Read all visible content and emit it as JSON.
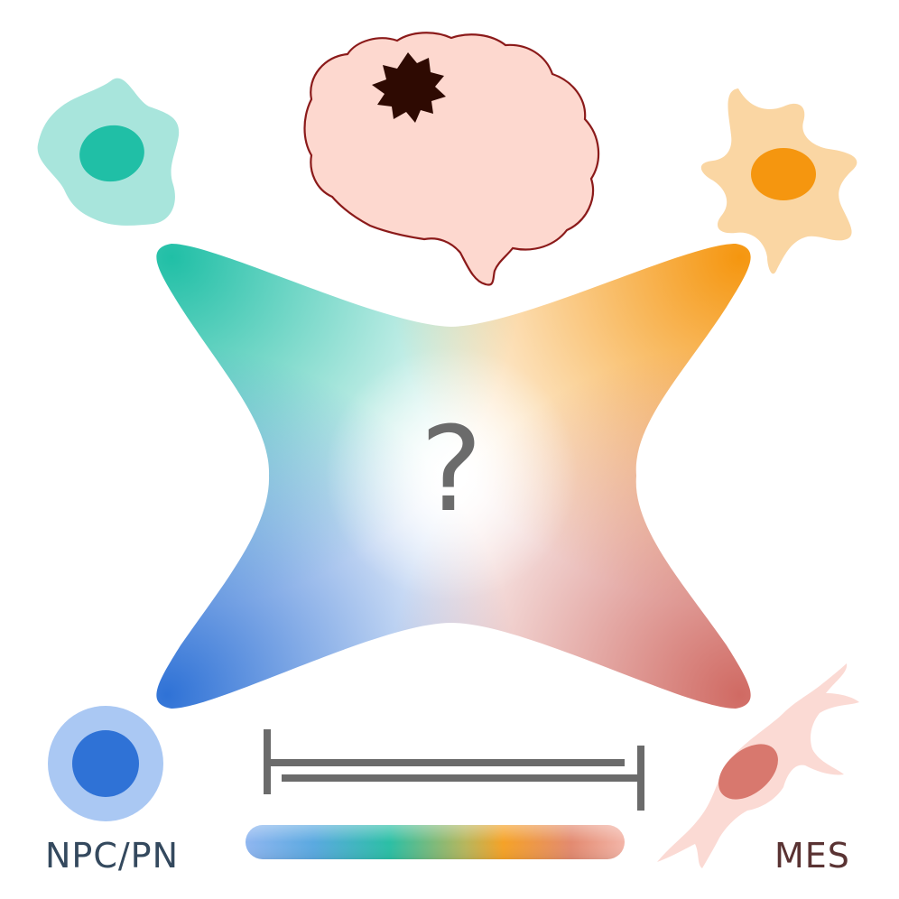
{
  "question_mark": "?",
  "labels": {
    "left": "NPC/PN",
    "right": "MES"
  },
  "colors": {
    "npc_cell": "#2f72d6",
    "opc_cell": "#20bfa6",
    "ac_cell": "#f5960f",
    "mes_cell": "#d8786e",
    "brain_fill": "#fdd8cf",
    "brain_outline": "#8b1a1a",
    "tumor": "#2e0a02",
    "inhibit_bar": "#6b6b6b"
  },
  "icons": {
    "top_left": "opc-like-cell-icon",
    "top_right": "astrocyte-like-cell-icon",
    "bottom_left": "npc-cell-icon",
    "bottom_right": "mesenchymal-cell-icon",
    "top_center": "brain-tumor-icon"
  }
}
